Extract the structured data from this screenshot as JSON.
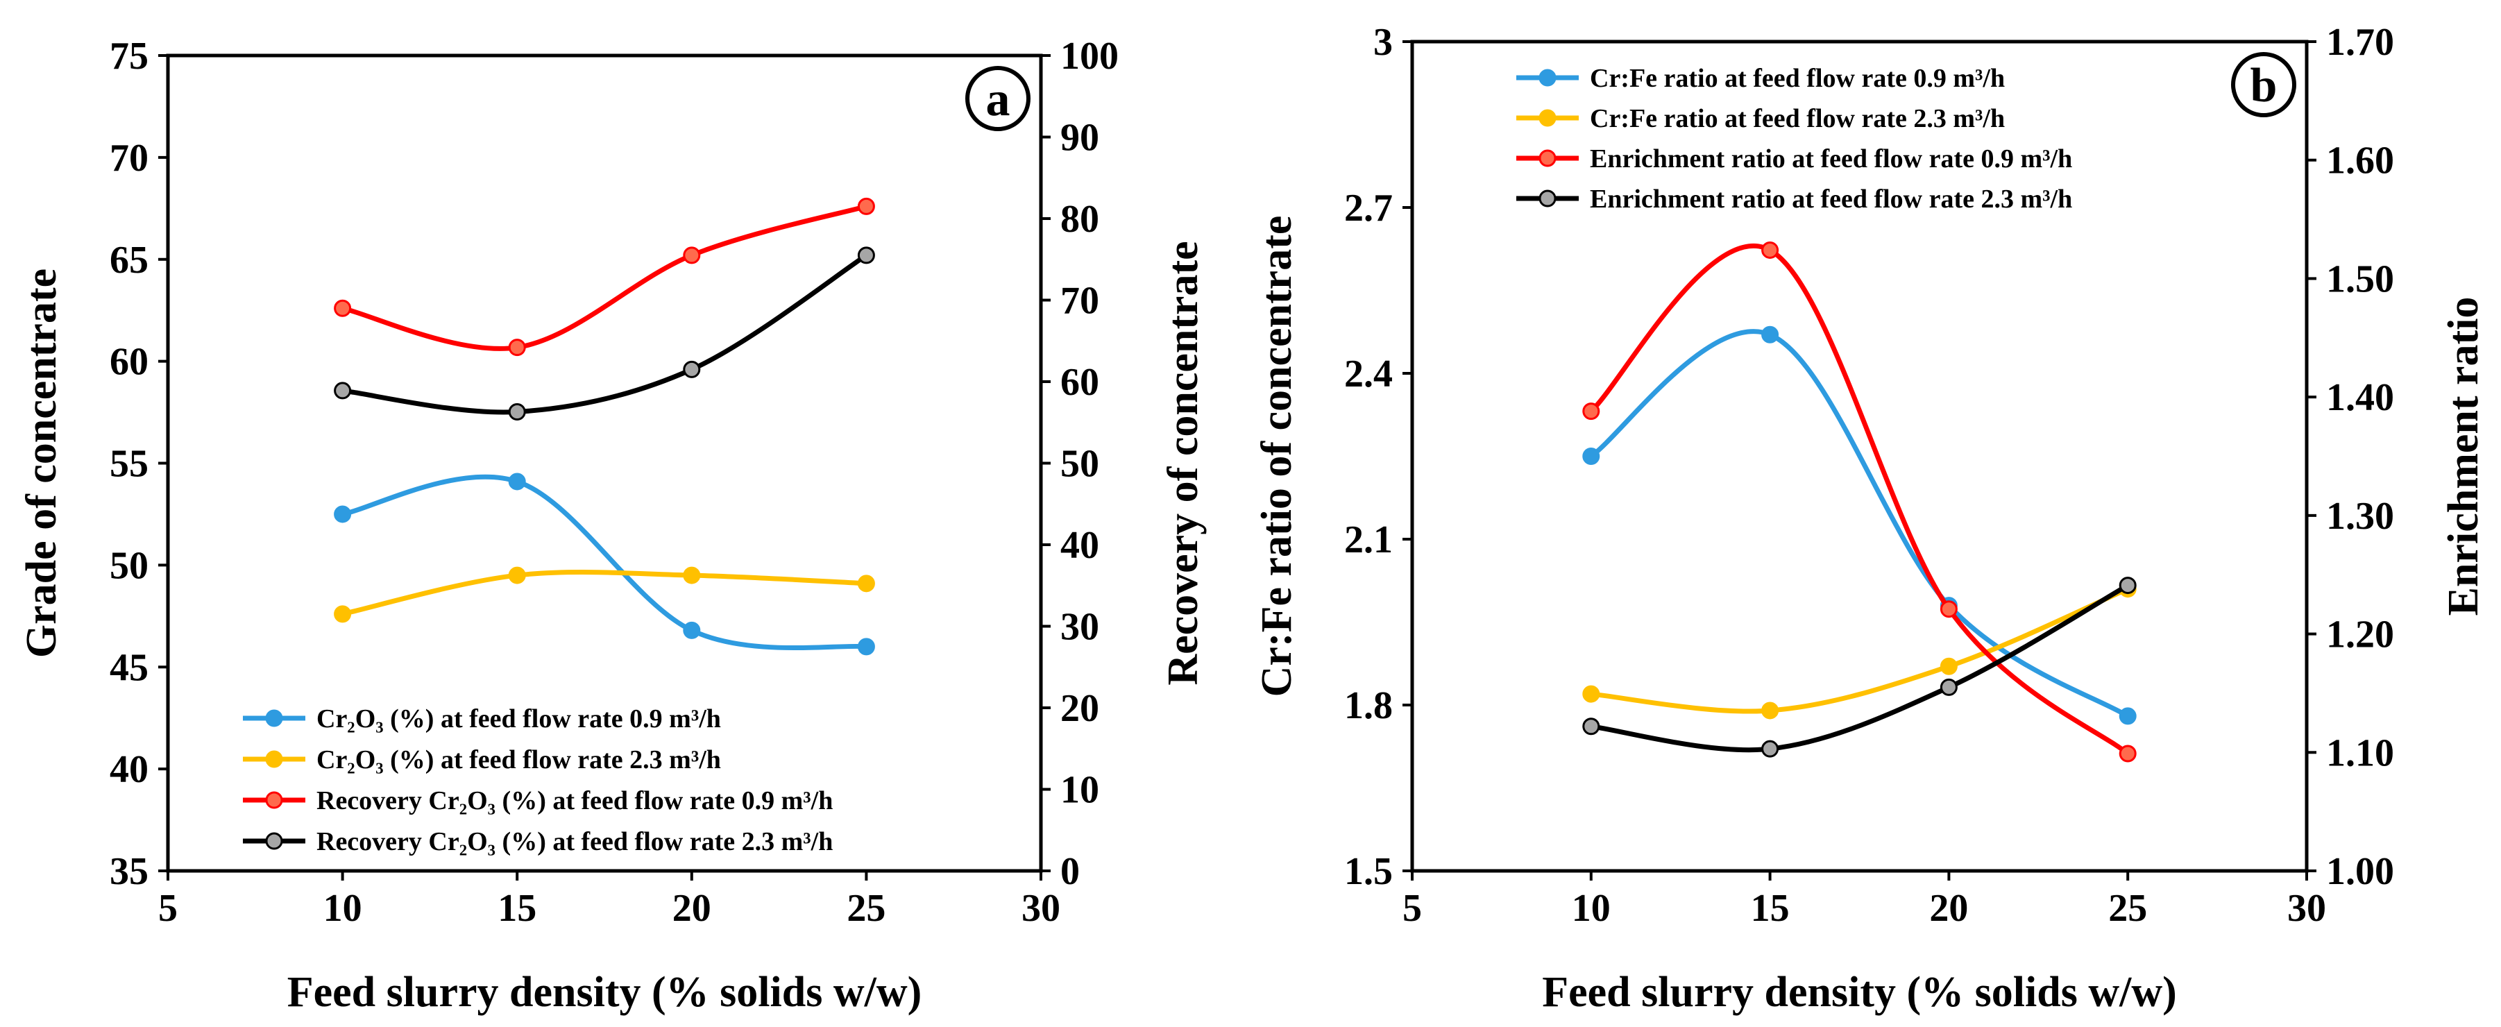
{
  "chart_data": [
    {
      "type": "line",
      "panel_label": "a",
      "xlabel": "Feed slurry density (% solids w/w)",
      "ylabel_left": "Grade of concentrate",
      "ylabel_right": "Recovery of concentrate",
      "xlim": [
        5,
        30
      ],
      "xticks": [
        "5",
        "10",
        "15",
        "20",
        "25",
        "30"
      ],
      "ylim_left": [
        35,
        75
      ],
      "yticks_left": [
        "35",
        "40",
        "45",
        "50",
        "55",
        "60",
        "65",
        "70",
        "75"
      ],
      "ylim_right": [
        0,
        100
      ],
      "yticks_right": [
        "0",
        "10",
        "20",
        "30",
        "40",
        "50",
        "60",
        "70",
        "80",
        "90",
        "100"
      ],
      "legend_position": "bottom-left",
      "series": [
        {
          "name": "Cr₂O₃ (%) at feed flow rate 0.9 m³/h",
          "axis": "left",
          "color": "#2e9be0",
          "marker": "#2e9be0",
          "x": [
            10,
            15,
            20,
            25
          ],
          "values": [
            52.5,
            54.1,
            46.8,
            46.0
          ]
        },
        {
          "name": "Cr₂O₃ (%) at feed flow rate 2.3 m³/h",
          "axis": "left",
          "color": "#ffc000",
          "marker": "#ffc000",
          "x": [
            10,
            15,
            20,
            25
          ],
          "values": [
            47.6,
            49.5,
            49.5,
            49.1
          ]
        },
        {
          "name": "Recovery Cr₂O₃ (%)  at feed flow rate 0.9 m³/h",
          "axis": "right",
          "color": "#ff0000",
          "marker": "#ff6a4d",
          "x": [
            10,
            15,
            20,
            25
          ],
          "values": [
            69,
            64.2,
            75.5,
            81.5
          ]
        },
        {
          "name": "Recovery Cr₂O₃ (%)  at feed flow rate 2.3 m³/h",
          "axis": "right",
          "color": "#000000",
          "marker": "#a6a6a6",
          "x": [
            10,
            15,
            20,
            25
          ],
          "values": [
            58.9,
            56.3,
            61.5,
            75.5
          ]
        }
      ]
    },
    {
      "type": "line",
      "panel_label": "b",
      "xlabel": "Feed slurry density (% solids w/w)",
      "ylabel_left": "Cr:Fe ratio of concentrate",
      "ylabel_right": "Enrichment ratio",
      "xlim": [
        5,
        30
      ],
      "xticks": [
        "5",
        "10",
        "15",
        "20",
        "25",
        "30"
      ],
      "ylim_left": [
        1.5,
        3.0
      ],
      "yticks_left": [
        "1.5",
        "1.8",
        "2.1",
        "2.4",
        "2.7",
        "3"
      ],
      "ylim_right": [
        1.0,
        1.7
      ],
      "yticks_right": [
        "1.00",
        "1.10",
        "1.20",
        "1.30",
        "1.40",
        "1.50",
        "1.60",
        "1.70"
      ],
      "legend_position": "top-left",
      "series": [
        {
          "name": "Cr:Fe ratio  at feed flow rate 0.9 m³/h",
          "axis": "left",
          "color": "#2e9be0",
          "marker": "#2e9be0",
          "x": [
            10,
            15,
            20,
            25
          ],
          "values": [
            2.25,
            2.47,
            1.98,
            1.78
          ]
        },
        {
          "name": "Cr:Fe ratio  at feed flow rate 2.3 m³/h",
          "axis": "left",
          "color": "#ffc000",
          "marker": "#ffc000",
          "x": [
            10,
            15,
            20,
            25
          ],
          "values": [
            1.82,
            1.79,
            1.87,
            2.01
          ]
        },
        {
          "name": "Enrichment ratio  at feed flow rate 0.9 m³/h",
          "axis": "right",
          "color": "#ff0000",
          "marker": "#ff6a4d",
          "x": [
            10,
            15,
            20,
            25
          ],
          "values": [
            1.388,
            1.524,
            1.221,
            1.099
          ]
        },
        {
          "name": "Enrichment ratio  at feed flow rate 2.3 m³/h",
          "axis": "right",
          "color": "#000000",
          "marker": "#a6a6a6",
          "x": [
            10,
            15,
            20,
            25
          ],
          "values": [
            1.122,
            1.103,
            1.155,
            1.241
          ]
        }
      ]
    }
  ]
}
